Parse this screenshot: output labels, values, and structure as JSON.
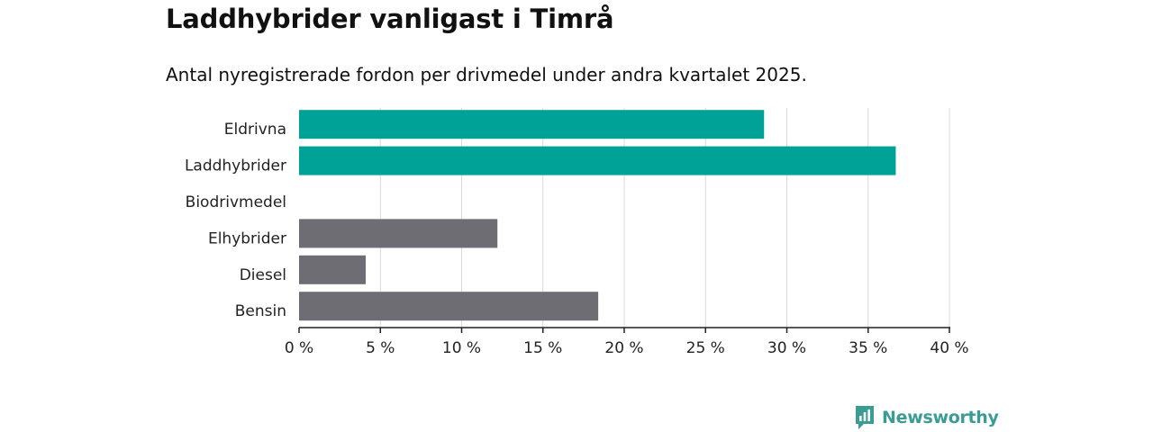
{
  "title": "Laddhybrider vanligast i Timrå",
  "subtitle": "Antal nyregistrerade fordon per drivmedel under andra kvartalet 2025.",
  "brand": {
    "name": "Newsworthy",
    "icon": "newsworthy-logo-icon"
  },
  "colors": {
    "highlight": "#00a297",
    "other": "#6e6d73",
    "grid": "#d9d9d9",
    "axis": "#222222",
    "brand": "#3a9c93"
  },
  "chart_data": {
    "type": "bar",
    "orientation": "horizontal",
    "categories": [
      "Eldrivna",
      "Laddhybrider",
      "Biodrivmedel",
      "Elhybrider",
      "Diesel",
      "Bensin"
    ],
    "values": [
      28.6,
      36.7,
      0,
      12.2,
      4.1,
      18.4
    ],
    "highlighted": [
      true,
      true,
      false,
      false,
      false,
      false
    ],
    "xlim": [
      0,
      40
    ],
    "xticks": [
      0,
      5,
      10,
      15,
      20,
      25,
      30,
      35,
      40
    ],
    "xtick_labels": [
      "0 %",
      "5 %",
      "10 %",
      "15 %",
      "20 %",
      "25 %",
      "30 %",
      "35 %",
      "40 %"
    ],
    "grid": true,
    "title": "Laddhybrider vanligast i Timrå",
    "xlabel": "",
    "ylabel": ""
  }
}
